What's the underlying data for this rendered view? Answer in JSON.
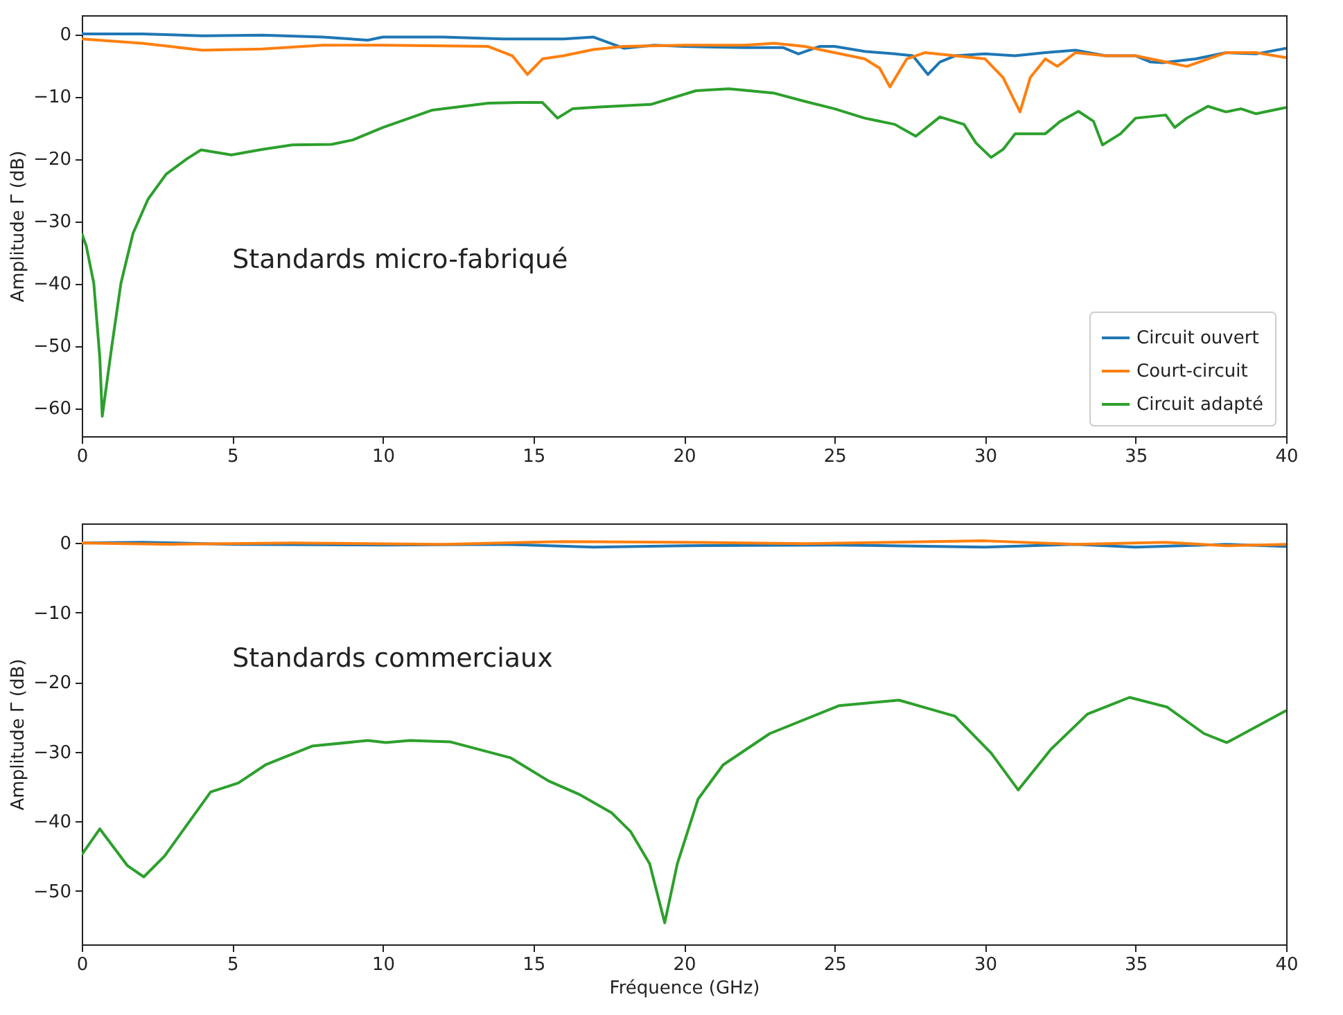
{
  "chart_data": [
    {
      "type": "line",
      "ylabel": "Amplitude Γ (dB)",
      "annotations": [
        "Standards micro-fabriqué"
      ],
      "xlim": [
        0,
        40
      ],
      "xticks": [
        0,
        5,
        10,
        15,
        20,
        25,
        30,
        35,
        40
      ],
      "ylim": [
        -64.5,
        3
      ],
      "yticks": [
        0,
        -10,
        -20,
        -30,
        -40,
        -50,
        -60
      ],
      "legend": "bottom right",
      "series": [
        {
          "name": "Circuit ouvert",
          "color": "#1f77b4",
          "x": [
            0,
            2,
            4,
            6,
            8,
            9.5,
            10,
            12,
            14,
            16,
            17,
            18,
            19,
            20,
            22,
            23.3,
            23.8,
            24.5,
            25,
            26,
            27,
            27.6,
            28.1,
            28.5,
            29,
            30,
            31,
            32,
            33,
            34,
            35,
            35.5,
            35.9,
            37,
            38,
            39,
            40
          ],
          "values": [
            0,
            0,
            -0.3,
            -0.2,
            -0.5,
            -1,
            -0.5,
            -0.5,
            -0.8,
            -0.8,
            -0.5,
            -2.3,
            -1.8,
            -2,
            -2.2,
            -2.2,
            -3.2,
            -2,
            -2,
            -2.8,
            -3.2,
            -3.5,
            -6.5,
            -4.5,
            -3.5,
            -3.2,
            -3.5,
            -3,
            -2.6,
            -3.5,
            -3.5,
            -4.5,
            -4.6,
            -4,
            -3,
            -3.2,
            -2.3
          ]
        },
        {
          "name": "Court-circuit",
          "color": "#ff7f0e",
          "x": [
            0,
            2,
            4,
            6,
            8,
            10,
            12,
            13.5,
            14.3,
            14.8,
            15.3,
            16,
            17,
            18,
            20,
            22,
            23,
            24,
            25,
            26,
            26.5,
            26.84,
            27.4,
            28,
            29,
            30,
            30.6,
            31.16,
            31.5,
            32,
            32.4,
            33,
            34,
            35,
            36,
            36.7,
            38,
            39,
            40
          ],
          "values": [
            -0.8,
            -1.5,
            -2.6,
            -2.4,
            -1.8,
            -1.8,
            -1.9,
            -2,
            -3.5,
            -6.5,
            -4,
            -3.5,
            -2.5,
            -2,
            -1.8,
            -1.8,
            -1.5,
            -2,
            -3,
            -4,
            -5.5,
            -8.5,
            -4,
            -3,
            -3.5,
            -4,
            -7,
            -12.5,
            -7,
            -4,
            -5.2,
            -3,
            -3.5,
            -3.5,
            -4.5,
            -5.2,
            -3,
            -3,
            -3.8
          ]
        },
        {
          "name": "Circuit adapté",
          "color": "#2ca02c",
          "x": [
            0,
            0.15,
            0.4,
            0.6,
            0.68,
            1,
            1.3,
            1.7,
            2.2,
            2.8,
            3.5,
            3.96,
            4.97,
            6,
            7,
            8.3,
            9,
            10,
            11.65,
            13.5,
            14.5,
            15.3,
            15.8,
            16.3,
            17.2,
            18.9,
            20.4,
            21.5,
            23,
            24,
            25,
            26,
            27,
            27.7,
            28.5,
            29.3,
            29.7,
            30.2,
            30.6,
            31,
            32,
            32.5,
            33.1,
            33.6,
            33.9,
            34.5,
            35,
            36,
            36.3,
            36.7,
            37.4,
            38,
            38.5,
            39,
            40
          ],
          "values": [
            -32,
            -34,
            -40,
            -52,
            -61.3,
            -50,
            -40,
            -32,
            -26.5,
            -22.5,
            -20,
            -18.6,
            -19.4,
            -18.5,
            -17.8,
            -17.7,
            -17,
            -15,
            -12.2,
            -11.1,
            -11,
            -11,
            -13.5,
            -12,
            -11.7,
            -11.3,
            -9.1,
            -8.8,
            -9.5,
            -10.8,
            -12,
            -13.5,
            -14.5,
            -16.4,
            -13.3,
            -14.5,
            -17.5,
            -19.8,
            -18.5,
            -16,
            -16,
            -14,
            -12.4,
            -14,
            -17.8,
            -16,
            -13.5,
            -13,
            -15,
            -13.5,
            -11.6,
            -12.5,
            -12,
            -12.8,
            -11.8
          ]
        }
      ]
    },
    {
      "type": "line",
      "xlabel": "Fréquence (GHz)",
      "ylabel": "Amplitude Γ (dB)",
      "annotations": [
        "Standards commerciaux"
      ],
      "xlim": [
        0,
        40
      ],
      "xticks": [
        0,
        5,
        10,
        15,
        20,
        25,
        30,
        35,
        40
      ],
      "ylim": [
        -57.7,
        2.8
      ],
      "yticks": [
        0,
        -10,
        -20,
        -30,
        -40,
        -50
      ],
      "series": [
        {
          "color": "#1f77b4",
          "x": [
            0,
            2,
            5,
            10,
            14,
            17,
            20,
            25,
            30,
            33,
            35,
            38,
            40
          ],
          "values": [
            0,
            0.1,
            -0.2,
            -0.3,
            -0.2,
            -0.6,
            -0.4,
            -0.3,
            -0.6,
            -0.2,
            -0.6,
            -0.2,
            -0.5
          ]
        },
        {
          "color": "#ff7f0e",
          "x": [
            0,
            3,
            7,
            12,
            16,
            20,
            24,
            30,
            33,
            36,
            38,
            40
          ],
          "values": [
            0,
            -0.2,
            0,
            -0.2,
            0.2,
            0.1,
            -0.1,
            0.3,
            -0.2,
            0.1,
            -0.4,
            -0.2
          ]
        },
        {
          "color": "#2ca02c",
          "x": [
            0,
            0.6,
            1.52,
            2.06,
            2.75,
            4.28,
            5.2,
            6.1,
            7.65,
            9.5,
            10.1,
            10.9,
            12.25,
            14.25,
            15.5,
            16.55,
            17.6,
            18.23,
            18.86,
            19.36,
            19.78,
            20.47,
            21.3,
            22.85,
            25.14,
            27.14,
            29,
            30.2,
            31.1,
            32.2,
            33.4,
            34.8,
            36.05,
            37.27,
            38.03,
            40
          ],
          "values": [
            -44.8,
            -41.1,
            -46.4,
            -48,
            -45,
            -35.8,
            -34.5,
            -31.9,
            -29.2,
            -28.4,
            -28.7,
            -28.4,
            -28.6,
            -30.9,
            -34.2,
            -36.2,
            -38.8,
            -41.5,
            -46.1,
            -54.6,
            -46.1,
            -36.8,
            -31.9,
            -27.4,
            -23.4,
            -22.6,
            -24.9,
            -30.2,
            -35.5,
            -29.6,
            -24.6,
            -22.2,
            -23.6,
            -27.4,
            -28.7,
            -24.1
          ]
        }
      ]
    }
  ]
}
